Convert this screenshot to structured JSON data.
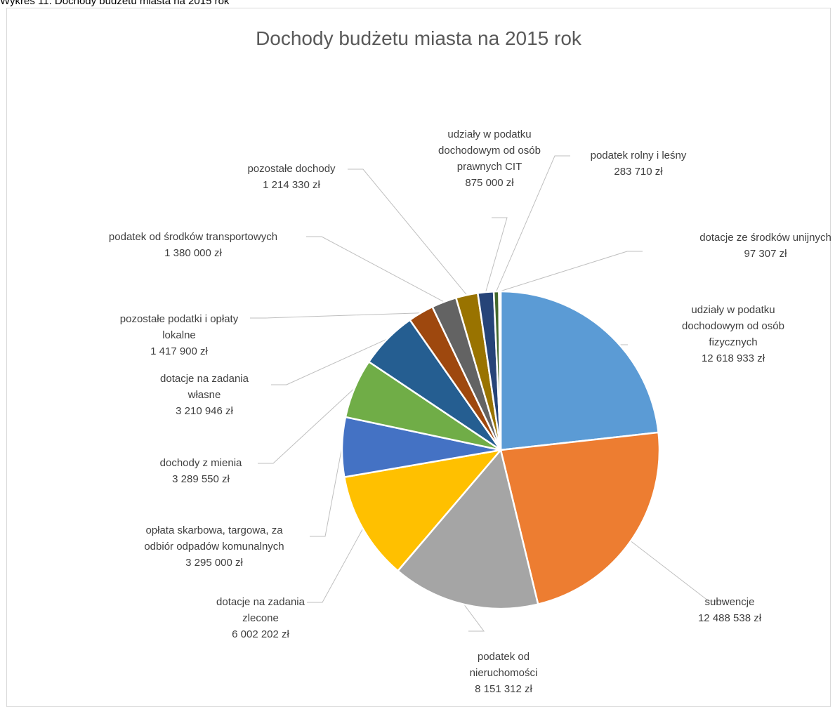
{
  "caption": "Wykres 11. Dochody budżetu miasta na 2015 rok",
  "chart_data": {
    "type": "pie",
    "title": "Dochody budżetu miasta na 2015 rok",
    "unit": "zł",
    "slices": [
      {
        "label": "udziały w podatku dochodowym od osób fizycznych",
        "value": 12618933,
        "value_label": "12 618 933 zł",
        "color": "#5b9bd5"
      },
      {
        "label": "subwencje",
        "value": 12488538,
        "value_label": "12 488 538 zł",
        "color": "#ed7d31"
      },
      {
        "label": "podatek od nieruchomości",
        "value": 8151312,
        "value_label": "8 151 312 zł",
        "color": "#a5a5a5"
      },
      {
        "label": "dotacje na zadania zlecone",
        "value": 6002202,
        "value_label": "6 002 202 zł",
        "color": "#ffc000"
      },
      {
        "label": "opłata skarbowa, targowa, za odbiór odpadów komunalnych",
        "value": 3295000,
        "value_label": "3 295 000 zł",
        "color": "#4472c4"
      },
      {
        "label": "dochody z mienia",
        "value": 3289550,
        "value_label": "3 289 550 zł",
        "color": "#70ad47"
      },
      {
        "label": "dotacje na zadania własne",
        "value": 3210946,
        "value_label": "3 210 946 zł",
        "color": "#255e91"
      },
      {
        "label": "pozostałe podatki i opłaty lokalne",
        "value": 1417900,
        "value_label": "1 417 900 zł",
        "color": "#9e480e"
      },
      {
        "label": "podatek od środków transportowych",
        "value": 1380000,
        "value_label": "1 380 000 zł",
        "color": "#636363"
      },
      {
        "label": "pozostałe dochody",
        "value": 1214330,
        "value_label": "1 214 330 zł",
        "color": "#997300"
      },
      {
        "label": "udziały w podatku dochodowym od osób prawnych CIT",
        "value": 875000,
        "value_label": "875 000 zł",
        "color": "#264478"
      },
      {
        "label": "podatek rolny i leśny",
        "value": 283710,
        "value_label": "283 710 zł",
        "color": "#43682b"
      },
      {
        "label": "dotacje ze środków unijnych",
        "value": 97307,
        "value_label": "97 307 zł",
        "color": "#698ed0"
      }
    ]
  }
}
